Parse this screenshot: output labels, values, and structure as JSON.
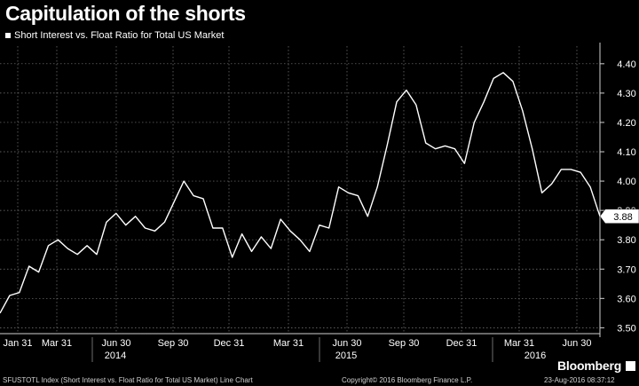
{
  "header": {
    "title": "Capitulation of the shorts",
    "legend_label": "Short Interest vs. Float Ratio for Total US Market"
  },
  "chart_data": {
    "type": "line",
    "title": "Capitulation of the shorts",
    "series": [
      {
        "name": "Short Interest vs. Float Ratio for Total US Market",
        "color": "#ffffff",
        "values": [
          3.55,
          3.61,
          3.62,
          3.71,
          3.69,
          3.78,
          3.8,
          3.77,
          3.75,
          3.78,
          3.75,
          3.86,
          3.89,
          3.85,
          3.88,
          3.84,
          3.83,
          3.86,
          3.93,
          4.0,
          3.95,
          3.94,
          3.84,
          3.84,
          3.74,
          3.82,
          3.76,
          3.81,
          3.77,
          3.87,
          3.83,
          3.8,
          3.76,
          3.85,
          3.84,
          3.98,
          3.96,
          3.95,
          3.88,
          3.98,
          4.12,
          4.27,
          4.31,
          4.26,
          4.13,
          4.11,
          4.12,
          4.11,
          4.06,
          4.2,
          4.27,
          4.35,
          4.37,
          4.34,
          4.24,
          4.11,
          3.96,
          3.99,
          4.04,
          4.04,
          4.03,
          3.98,
          3.88
        ]
      }
    ],
    "ylim": [
      3.48,
      4.46
    ],
    "yticks": [
      "3.50",
      "3.60",
      "3.70",
      "3.80",
      "3.90",
      "4.00",
      "4.10",
      "4.20",
      "4.30",
      "4.40"
    ],
    "xtick_labels": [
      "Jan 31",
      "Mar 31",
      "Jun 30",
      "Sep 30",
      "Dec 31",
      "Mar 31",
      "Jun 30",
      "Sep 30",
      "Dec 31",
      "Mar 31",
      "Jun 30"
    ],
    "year_labels": [
      "2014",
      "2015",
      "2016"
    ],
    "last_value_label": "3.88",
    "grid": true,
    "y_axis_side": "right"
  },
  "footer": {
    "source": "SFUSTOTL Index (Short Interest vs. Float Ratio for Total US Market) Line Chart",
    "copyright": "Copyright© 2016 Bloomberg Finance L.P.",
    "timestamp": "23-Aug-2016 08:37:12",
    "brand": "Bloomberg"
  }
}
